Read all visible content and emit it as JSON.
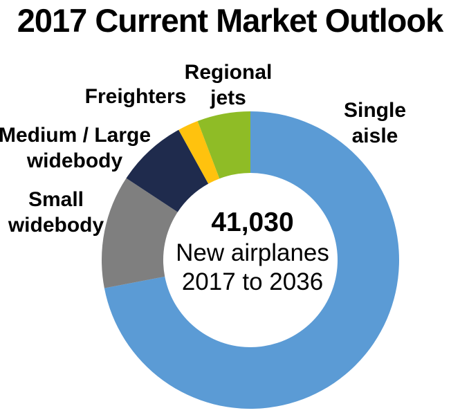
{
  "title": "2017 Current Market Outlook",
  "chart_data": {
    "type": "pie",
    "subtype": "donut",
    "title": "2017 Current Market Outlook",
    "total": 41030,
    "start_angle_deg": 0,
    "direction": "clockwise",
    "center_label": {
      "number": "41,030",
      "line1": "New airplanes",
      "line2": "2017 to 2036"
    },
    "segments": [
      {
        "id": "single-aisle",
        "label": "Single aisle",
        "value": 29530,
        "share_pct": 72.0,
        "color": "#5B9BD5"
      },
      {
        "id": "small-widebody",
        "label": "Small\nwidebody",
        "value": 5050,
        "share_pct": 12.3,
        "color": "#7F7F7F"
      },
      {
        "id": "medium-large-widebody",
        "label": "Medium / Large\nwidebody",
        "value": 3160,
        "share_pct": 7.7,
        "color": "#1F2B4D"
      },
      {
        "id": "freighters",
        "label": "Freighters",
        "value": 920,
        "share_pct": 2.2,
        "color": "#FFC20E"
      },
      {
        "id": "regional-jets",
        "label": "Regional\njets",
        "value": 2370,
        "share_pct": 5.8,
        "color": "#8FBC26"
      }
    ],
    "legend": "none",
    "label_placement": "outside"
  }
}
